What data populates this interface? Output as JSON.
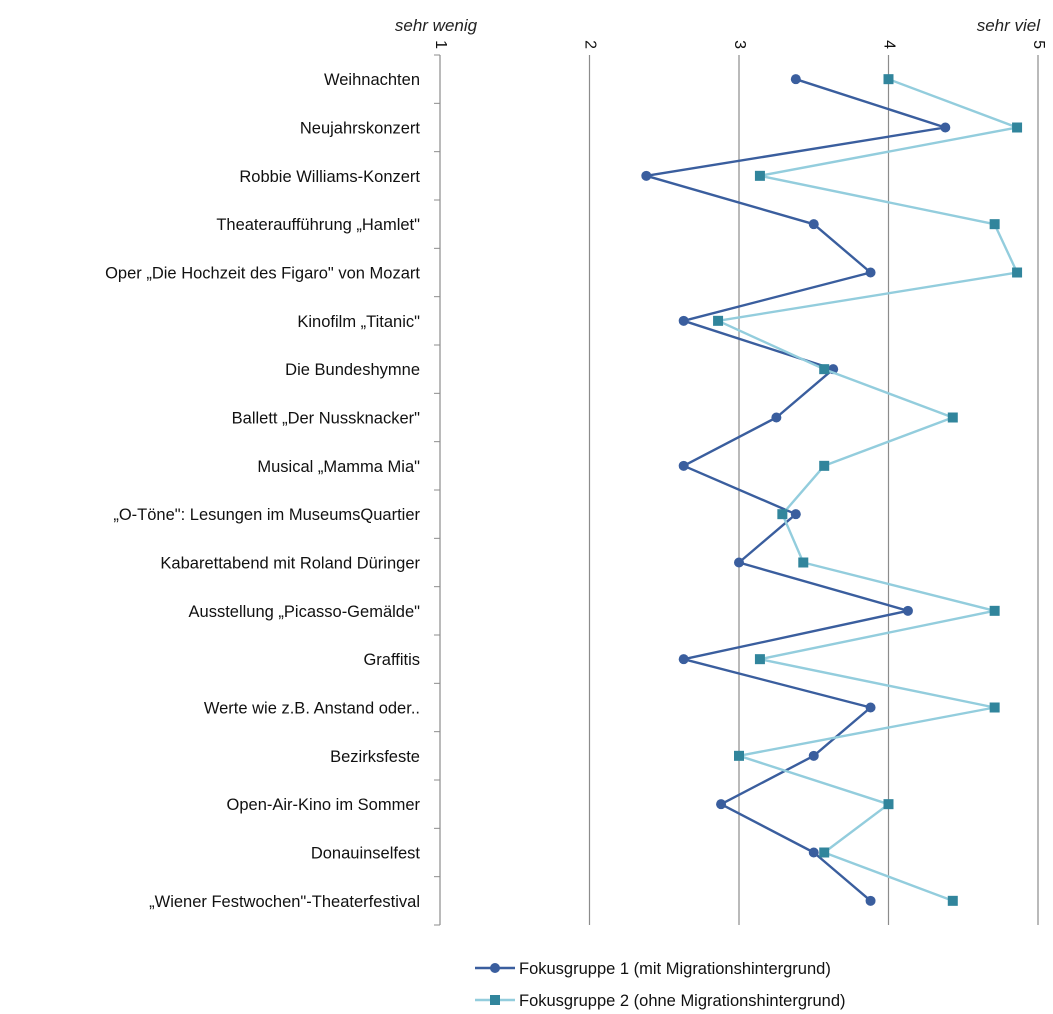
{
  "chart_data": {
    "type": "line",
    "orientation": "horizontal",
    "scale_low_label": "sehr wenig",
    "scale_high_label": "sehr viel",
    "xlim": [
      1,
      5
    ],
    "x_ticks": [
      "1",
      "2",
      "3",
      "4",
      "5"
    ],
    "grid": true,
    "legend_position": "bottom",
    "categories": [
      "Weihnachten",
      "Neujahrskonzert",
      "Robbie Williams-Konzert",
      "Theateraufführung „Hamlet\"",
      "Oper „Die Hochzeit des Figaro\" von Mozart",
      "Kinofilm „Titanic\"",
      "Die Bundeshymne",
      "Ballett „Der Nussknacker\"",
      "Musical „Mamma Mia\"",
      "„O-Töne\": Lesungen im MuseumsQuartier",
      "Kabarettabend mit Roland Düringer",
      "Ausstellung „Picasso-Gemälde\"",
      "Graffitis",
      "Werte wie z.B. Anstand oder..",
      "Bezirksfeste",
      "Open-Air-Kino im Sommer",
      "Donauinselfest",
      "„Wiener Festwochen\"-Theaterfestival"
    ],
    "series": [
      {
        "name": "Fokusgruppe 1 (mit Migrationshintergrund)",
        "color": "#3A5E9E",
        "marker": "circle",
        "values": [
          3.38,
          4.38,
          2.38,
          3.5,
          3.88,
          2.63,
          3.63,
          3.25,
          2.63,
          3.38,
          3.0,
          4.13,
          2.63,
          3.88,
          3.5,
          2.88,
          3.5,
          3.88
        ]
      },
      {
        "name": "Fokusgruppe 2 (ohne Migrationshintergrund)",
        "color": "#93CDDD",
        "marker_color": "#31859C",
        "marker": "square",
        "values": [
          4.0,
          4.86,
          3.14,
          4.71,
          4.86,
          2.86,
          3.57,
          4.43,
          3.57,
          3.29,
          3.43,
          4.71,
          3.14,
          4.71,
          3.0,
          4.0,
          3.57,
          4.43
        ]
      }
    ]
  }
}
